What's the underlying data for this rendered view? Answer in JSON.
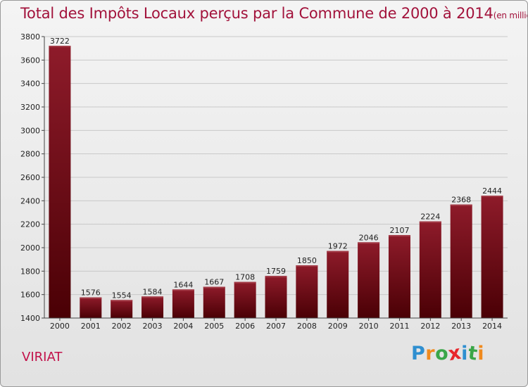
{
  "header": {
    "title": "Total des Impôts Locaux perçus par la Commune de 2000 à 2014",
    "unit": "(en milliers d'€)"
  },
  "footer": {
    "commune": "VIRIAT",
    "logo_letters": [
      "P",
      "r",
      "o",
      "x",
      "i",
      "t",
      "i"
    ],
    "logo_colors": [
      "#2f8fd0",
      "#f08a1e",
      "#3aa648",
      "#e8262b",
      "#2f8fd0",
      "#3aa648",
      "#f08a1e"
    ]
  },
  "colors": {
    "bar_top": "#8e1b2a",
    "bar_bottom": "#4a0005",
    "bar_highlight": "#a33a46",
    "grid": "#c8c8c8",
    "axis": "#444444",
    "text": "#222222"
  },
  "chart_data": {
    "type": "bar",
    "title": "Total des Impôts Locaux perçus par la Commune de 2000 à 2014",
    "ylabel": "en milliers d'€",
    "xlabel": "",
    "categories": [
      "2000",
      "2001",
      "2002",
      "2003",
      "2004",
      "2005",
      "2006",
      "2007",
      "2008",
      "2009",
      "2010",
      "2011",
      "2012",
      "2013",
      "2014"
    ],
    "values": [
      3722,
      1576,
      1554,
      1584,
      1644,
      1667,
      1708,
      1759,
      1850,
      1972,
      2046,
      2107,
      2224,
      2368,
      2444
    ],
    "ylim": [
      1400,
      3800
    ],
    "yticks": [
      1400,
      1600,
      1800,
      2000,
      2200,
      2400,
      2600,
      2800,
      3000,
      3200,
      3400,
      3600,
      3800
    ],
    "grid": true,
    "legend": "none"
  }
}
